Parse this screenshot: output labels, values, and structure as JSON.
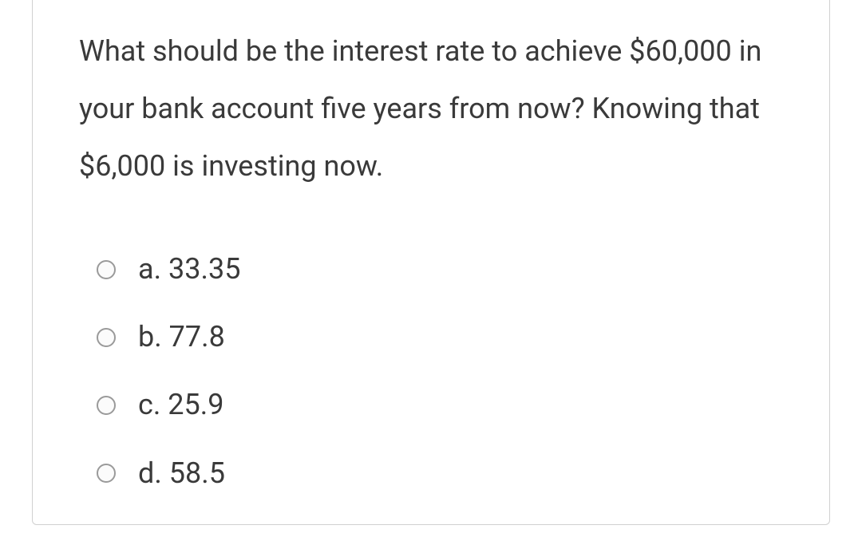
{
  "question": {
    "text": "What should be the interest rate to achieve $60,000 in your bank account five years from now? Knowing that $6,000 is investing now."
  },
  "options": [
    {
      "letter": "a",
      "value": "33.35",
      "selected": false
    },
    {
      "letter": "b",
      "value": "77.8",
      "selected": false
    },
    {
      "letter": "c",
      "value": "25.9",
      "selected": false
    },
    {
      "letter": "d",
      "value": "58.5",
      "selected": false
    }
  ],
  "styles": {
    "card_border_color": "#d0d0d0",
    "text_color": "#3a3a3a",
    "background_color": "#ffffff",
    "radio_border_color": "#9a9a9a",
    "font_size_question": 36,
    "font_size_option": 36
  }
}
